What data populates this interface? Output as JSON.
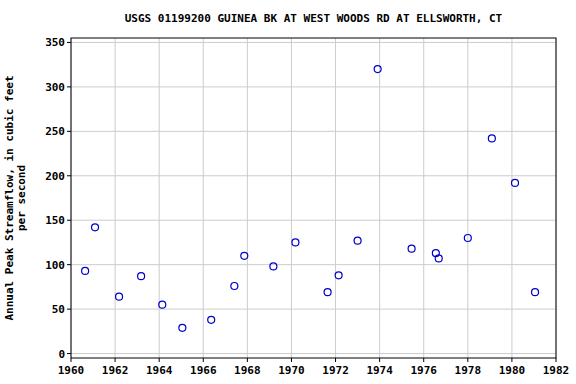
{
  "chart_data": {
    "type": "scatter",
    "title": "USGS 01199200 GUINEA BK AT WEST WOODS RD AT ELLSWORTH, CT",
    "y_label": [
      "Annual Peak Streamflow, in cubic feet",
      "per second"
    ],
    "x": [
      1960.64,
      1961.09,
      1962.18,
      1963.18,
      1964.14,
      1965.05,
      1966.36,
      1967.41,
      1967.86,
      1969.18,
      1970.18,
      1971.64,
      1972.14,
      1973.0,
      1973.91,
      1975.45,
      1976.55,
      1976.68,
      1978.0,
      1979.09,
      1980.14,
      1981.05
    ],
    "values": [
      93,
      142,
      64,
      87,
      55,
      29,
      38,
      76,
      110,
      98,
      125,
      69,
      88,
      127,
      320,
      118,
      113,
      107,
      130,
      242,
      192,
      69
    ],
    "color": "#0000cc",
    "marker": "open-circle",
    "xlim": [
      1960,
      1982
    ],
    "xticks": [
      1960,
      1962,
      1964,
      1966,
      1968,
      1970,
      1972,
      1974,
      1976,
      1978,
      1980,
      1982
    ],
    "ylim": [
      -5,
      355
    ],
    "yticks": [
      0,
      50,
      100,
      150,
      200,
      250,
      300,
      350
    ],
    "grid": true
  }
}
